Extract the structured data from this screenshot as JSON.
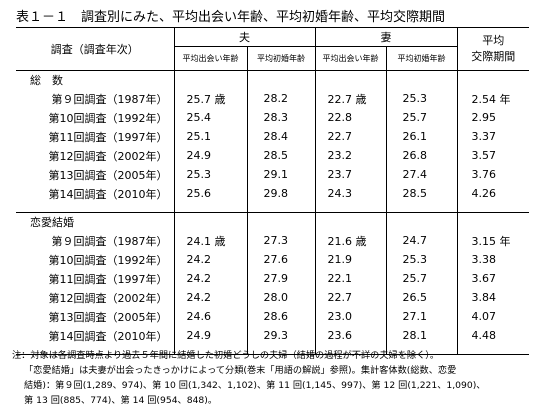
{
  "title": "表１－１　調査別にみた、平均出会い年齢、平均初婚年齢、平均交際期間",
  "header": {
    "survey": "調査（調査年次）",
    "husband": "夫",
    "wife": "妻",
    "period_line1": "平均",
    "period_line2": "交際期間",
    "meet_age": "平均出会い年齢",
    "marriage_age": "平均初婚年齢"
  },
  "sections": [
    {
      "label": "総　数",
      "rows": [
        {
          "survey": "第９回調査（1987年）",
          "h_meet": "25.7 歳",
          "h_marry": "28.2",
          "w_meet": "22.7 歳",
          "w_marry": "25.3",
          "period": "2.54 年"
        },
        {
          "survey": "第10回調査（1992年）",
          "h_meet": "25.4",
          "h_marry": "28.3",
          "w_meet": "22.8",
          "w_marry": "25.7",
          "period": "2.95"
        },
        {
          "survey": "第11回調査（1997年）",
          "h_meet": "25.1",
          "h_marry": "28.4",
          "w_meet": "22.7",
          "w_marry": "26.1",
          "period": "3.37"
        },
        {
          "survey": "第12回調査（2002年）",
          "h_meet": "24.9",
          "h_marry": "28.5",
          "w_meet": "23.2",
          "w_marry": "26.8",
          "period": "3.57"
        },
        {
          "survey": "第13回調査（2005年）",
          "h_meet": "25.3",
          "h_marry": "29.1",
          "w_meet": "23.7",
          "w_marry": "27.4",
          "period": "3.76"
        },
        {
          "survey": "第14回調査（2010年）",
          "h_meet": "25.6",
          "h_marry": "29.8",
          "w_meet": "24.3",
          "w_marry": "28.5",
          "period": "4.26"
        }
      ]
    },
    {
      "label": "恋愛結婚",
      "rows": [
        {
          "survey": "第９回調査（1987年）",
          "h_meet": "24.1 歳",
          "h_marry": "27.3",
          "w_meet": "21.6 歳",
          "w_marry": "24.7",
          "period": "3.15 年"
        },
        {
          "survey": "第10回調査（1992年）",
          "h_meet": "24.2",
          "h_marry": "27.6",
          "w_meet": "21.9",
          "w_marry": "25.3",
          "period": "3.38"
        },
        {
          "survey": "第11回調査（1997年）",
          "h_meet": "24.2",
          "h_marry": "27.9",
          "w_meet": "22.1",
          "w_marry": "25.7",
          "period": "3.67"
        },
        {
          "survey": "第12回調査（2002年）",
          "h_meet": "24.2",
          "h_marry": "28.0",
          "w_meet": "22.7",
          "w_marry": "26.5",
          "period": "3.84"
        },
        {
          "survey": "第13回調査（2005年）",
          "h_meet": "24.6",
          "h_marry": "28.6",
          "w_meet": "23.0",
          "w_marry": "27.1",
          "period": "4.07"
        },
        {
          "survey": "第14回調査（2010年）",
          "h_meet": "24.9",
          "h_marry": "29.3",
          "w_meet": "23.6",
          "w_marry": "28.1",
          "period": "4.48"
        }
      ]
    }
  ],
  "notes": [
    "注：対象は各調査時点より過去５年間に結婚した初婚どうしの夫婦（結婚の過程が不詳の夫婦を除く）。",
    "「恋愛結婚」は夫妻が出会ったきっかけによって分類(巻末「用語の解説」参照)。集計客体数(総数、恋愛",
    "結婚)：第９回(1,289、974)、第 10 回(1,342、1,102)、第 11 回(1,145、997)、第 12 回(1,221、1,090)、",
    "第 13 回(885、774)、第 14 回(954、848)。"
  ]
}
